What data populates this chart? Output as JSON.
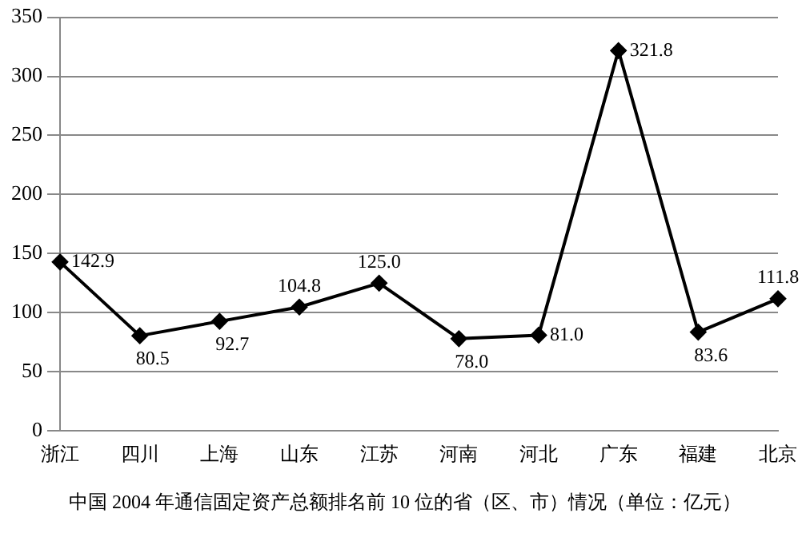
{
  "chart_data": {
    "type": "line",
    "categories": [
      "浙江",
      "四川",
      "上海",
      "山东",
      "江苏",
      "河南",
      "河北",
      "广东",
      "福建",
      "北京"
    ],
    "series": [
      {
        "color": "#000000",
        "values": [
          142.9,
          80.5,
          92.7,
          104.8,
          125.0,
          78.0,
          81.0,
          321.8,
          83.6,
          111.8
        ],
        "value_labels": [
          "142.9",
          "80.5",
          "92.7",
          "104.8",
          "125.0",
          "78.0",
          "81.0",
          "321.8",
          "83.6",
          "111.8"
        ]
      }
    ],
    "ylim": [
      0,
      350
    ],
    "yticks": [
      0,
      50,
      100,
      150,
      200,
      250,
      300,
      350
    ],
    "grid": "y",
    "legend": false,
    "marker": "diamond",
    "line_style": "solid",
    "annotations": [
      "中国 2004 年通信固定资产总额排名前 10 位的省（区、市）情况（单位：亿元）"
    ]
  }
}
